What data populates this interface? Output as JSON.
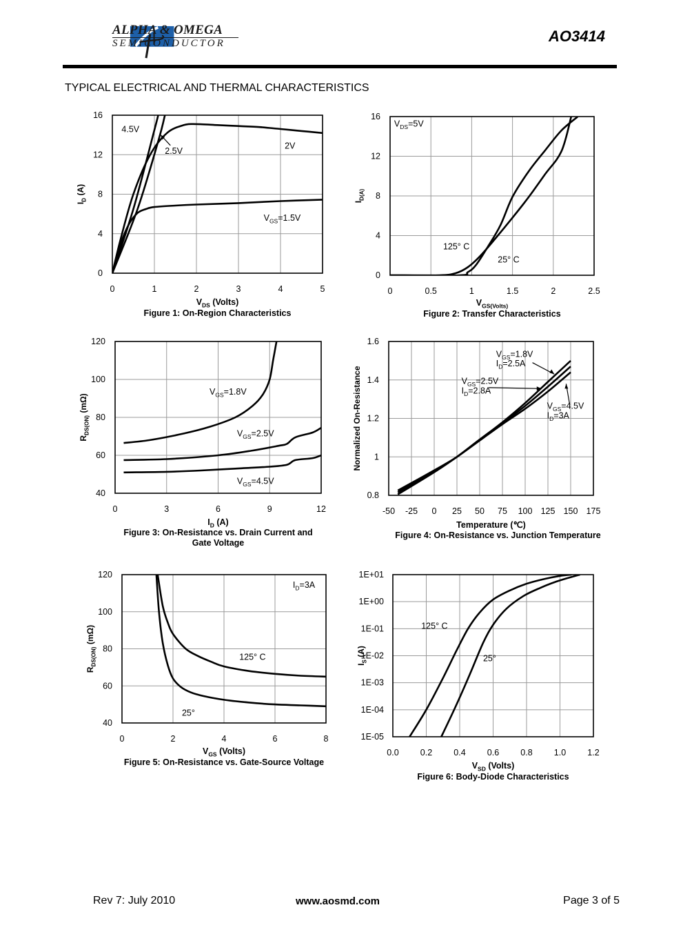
{
  "header": {
    "company_name": "ALPHA & OMEGA",
    "company_sub": "SEMICONDUCTOR",
    "part_number": "AO3414"
  },
  "section_title": "TYPICAL ELECTRICAL AND THERMAL CHARACTERISTICS",
  "footer": {
    "revision": "Rev 7: July 2010",
    "website": "www.aosmd.com",
    "page": "Page 3 of 5"
  },
  "colors": {
    "curve": "#000000",
    "grid": "#9a9a9a",
    "logo_blue": "#1d5fa8"
  },
  "chart_data": [
    {
      "type": "line",
      "caption": "Figure 1: On-Region Characteristics",
      "xlabel": "V_DS (Volts)",
      "ylabel": "I_D (A)",
      "xlim": [
        0,
        5
      ],
      "ylim": [
        0,
        16
      ],
      "xticks": [
        0,
        1,
        2,
        3,
        4,
        5
      ],
      "yticks": [
        0,
        4,
        8,
        12,
        16
      ],
      "grid": true,
      "annotations": [
        {
          "text": "4.5V",
          "x": 0.22,
          "y": 14.3
        },
        {
          "text": "2.5V",
          "x": 1.25,
          "y": 12.1,
          "arrow_to": [
            1.15,
            14.0
          ]
        },
        {
          "text": "2V",
          "x": 4.1,
          "y": 12.6
        },
        {
          "text": "V_GS=1.5V",
          "x": 3.6,
          "y": 5.3
        }
      ],
      "series": [
        {
          "x": [
            0,
            0.5,
            1.0,
            1.09
          ],
          "y": [
            0,
            6.5,
            14.5,
            16
          ]
        },
        {
          "x": [
            0,
            0.6,
            1.1,
            1.25
          ],
          "y": [
            0,
            6.5,
            13.5,
            16
          ]
        },
        {
          "x": [
            0,
            0.2,
            0.5,
            0.9,
            1.3,
            1.7,
            2.0,
            2.5,
            3.0,
            3.5,
            4.0,
            4.5,
            5.0
          ],
          "y": [
            0,
            3.5,
            8.0,
            12.0,
            14.2,
            15.0,
            15.1,
            15.0,
            14.9,
            14.8,
            14.6,
            14.4,
            14.2
          ]
        },
        {
          "x": [
            0,
            0.2,
            0.4,
            0.6,
            0.8,
            1.0,
            1.5,
            2.0,
            3.0,
            4.0,
            5.0
          ],
          "y": [
            0,
            3.0,
            5.0,
            6.1,
            6.5,
            6.7,
            6.85,
            6.95,
            7.1,
            7.3,
            7.45
          ]
        }
      ]
    },
    {
      "type": "line",
      "caption": "Figure 2: Transfer Characteristics",
      "xlabel": "V_GS(Volts)",
      "ylabel": "I_D(A)",
      "xlim": [
        0,
        2.5
      ],
      "ylim": [
        0,
        16
      ],
      "xticks": [
        0,
        0.5,
        1,
        1.5,
        2,
        2.5
      ],
      "yticks": [
        0,
        4,
        8,
        12,
        16
      ],
      "grid": true,
      "annotations": [
        {
          "text": "V_DS=5V",
          "x": 0.05,
          "y": 15.0
        },
        {
          "text": "125° C",
          "x": 0.65,
          "y": 2.6
        },
        {
          "text": "25° C",
          "x": 1.32,
          "y": 1.3
        }
      ],
      "series": [
        {
          "name": "125° C",
          "x": [
            0,
            0.6,
            0.8,
            0.95,
            1.1,
            1.3,
            1.5,
            1.7,
            1.9,
            2.1,
            2.22
          ],
          "y": [
            0,
            0,
            0.2,
            0.8,
            1.9,
            3.8,
            5.8,
            7.9,
            10.2,
            12.5,
            16.0
          ]
        },
        {
          "name": "25° C",
          "x": [
            0,
            0.85,
            0.95,
            1.05,
            1.2,
            1.35,
            1.5,
            1.7,
            1.9,
            2.1,
            2.3
          ],
          "y": [
            0,
            0,
            0.3,
            1.0,
            2.9,
            5.0,
            7.9,
            10.5,
            12.6,
            14.6,
            16.0
          ]
        }
      ]
    },
    {
      "type": "line",
      "caption": "Figure 3: On-Resistance vs. Drain Current and Gate Voltage",
      "xlabel": "I_D (A)",
      "ylabel": "R_DS(ON) (mΩ)",
      "xlim": [
        0,
        12
      ],
      "ylim": [
        40,
        120
      ],
      "xticks": [
        0,
        3,
        6,
        9,
        12
      ],
      "yticks": [
        40,
        60,
        80,
        100,
        120
      ],
      "grid": true,
      "annotations": [
        {
          "text": "V_GS=1.8V",
          "x": 5.5,
          "y": 92
        },
        {
          "text": "V_GS=2.5V",
          "x": 7.1,
          "y": 70
        },
        {
          "text": "V_GS=4.5V",
          "x": 7.1,
          "y": 45
        }
      ],
      "series": [
        {
          "name": "V_GS=1.8V",
          "x": [
            0.5,
            2,
            4,
            5.5,
            7,
            8,
            8.6,
            9.0,
            9.2,
            9.4
          ],
          "y": [
            66.5,
            68,
            71.5,
            75,
            80,
            86,
            92,
            100,
            110,
            120
          ]
        },
        {
          "name": "V_GS=2.5V",
          "x": [
            0.5,
            3,
            6,
            8,
            9.5,
            10.0,
            10.5,
            11.5,
            12
          ],
          "y": [
            57.5,
            58,
            60,
            62.5,
            65,
            66,
            69.5,
            72,
            74.5
          ]
        },
        {
          "name": "V_GS=4.5V",
          "x": [
            0.5,
            3,
            5,
            7,
            9,
            10,
            10.5,
            11.5,
            12
          ],
          "y": [
            51,
            51.3,
            52,
            53,
            54,
            55,
            57.5,
            58.5,
            60
          ]
        }
      ]
    },
    {
      "type": "line",
      "caption": "Figure 4: On-Resistance vs. Junction Temperature",
      "xlabel": "Temperature (℃)",
      "ylabel": "Normalized On-Resistance",
      "xlim": [
        -50,
        175
      ],
      "ylim": [
        0.8,
        1.6
      ],
      "xticks": [
        -50,
        -25,
        0,
        25,
        50,
        75,
        100,
        125,
        150,
        175
      ],
      "yticks": [
        0.8,
        1,
        1.2,
        1.4,
        1.6
      ],
      "grid": true,
      "annotations": [
        {
          "text": "V_GS=1.8V",
          "x": 68,
          "y": 1.52
        },
        {
          "text": "I_D=2.5A",
          "x": 68,
          "y": 1.47
        },
        {
          "text": "V_GS=2.5V",
          "x": 30,
          "y": 1.38
        },
        {
          "text": "I_D=2.8A",
          "x": 30,
          "y": 1.33
        },
        {
          "text": "V_GS=4.5V",
          "x": 124,
          "y": 1.25
        },
        {
          "text": "I_D=3A",
          "x": 124,
          "y": 1.2
        }
      ],
      "series": [
        {
          "name": "V_GS=1.8V",
          "x": [
            -40,
            0,
            25,
            50,
            75,
            100,
            125,
            150
          ],
          "y": [
            0.805,
            0.92,
            1.0,
            1.09,
            1.18,
            1.28,
            1.39,
            1.5
          ]
        },
        {
          "name": "V_GS=2.5V",
          "x": [
            -40,
            0,
            25,
            50,
            75,
            100,
            125,
            150
          ],
          "y": [
            0.815,
            0.925,
            1.0,
            1.09,
            1.175,
            1.265,
            1.365,
            1.47
          ]
        },
        {
          "name": "V_GS=4.5V",
          "x": [
            -40,
            0,
            25,
            50,
            75,
            100,
            125,
            150
          ],
          "y": [
            0.825,
            0.93,
            1.0,
            1.085,
            1.17,
            1.25,
            1.34,
            1.44
          ]
        }
      ]
    },
    {
      "type": "line",
      "caption": "Figure 5: On-Resistance vs. Gate-Source Voltage",
      "xlabel": "V_GS (Volts)",
      "ylabel": "R_DS(ON) (mΩ)",
      "xlim": [
        0,
        8
      ],
      "ylim": [
        40,
        120
      ],
      "xticks": [
        0,
        2,
        4,
        6,
        8
      ],
      "yticks": [
        40,
        60,
        80,
        100,
        120
      ],
      "grid": true,
      "annotations": [
        {
          "text": "I_D=3A",
          "x": 6.7,
          "y": 113
        },
        {
          "text": "125° C",
          "x": 4.6,
          "y": 74
        },
        {
          "text": "25°",
          "x": 2.35,
          "y": 44
        }
      ],
      "series": [
        {
          "name": "125° C",
          "x": [
            1.4,
            1.6,
            1.8,
            2.0,
            2.5,
            3.0,
            3.5,
            4.0,
            5.0,
            6.0,
            7.0,
            8.0
          ],
          "y": [
            120,
            103,
            94,
            88,
            80,
            76,
            73,
            70.5,
            68,
            66.5,
            65.5,
            65
          ]
        },
        {
          "name": "25°",
          "x": [
            1.35,
            1.45,
            1.6,
            1.8,
            2.0,
            2.3,
            2.7,
            3.2,
            4.0,
            5.0,
            6.0,
            7.0,
            8.0
          ],
          "y": [
            120,
            100,
            83,
            71,
            64,
            59.5,
            56.5,
            54.5,
            52.5,
            51,
            50,
            49.5,
            49
          ]
        }
      ]
    },
    {
      "type": "line",
      "caption": "Figure 6: Body-Diode Characteristics",
      "xlabel": "V_SD (Volts)",
      "ylabel": "I_S (A)",
      "xlim": [
        0,
        1.2
      ],
      "ylim": [
        1e-05,
        10
      ],
      "yscale": "log",
      "xticks": [
        "0.0",
        "0.2",
        "0.4",
        "0.6",
        "0.8",
        "1.0",
        "1.2"
      ],
      "yticks": [
        "1E-05",
        "1E-04",
        "1E-03",
        "1E-02",
        "1E-01",
        "1E+00",
        "1E+01"
      ],
      "grid": true,
      "annotations": [
        {
          "text": "125° C",
          "x": 0.17,
          "y": 0.1
        },
        {
          "text": "25°",
          "x": 0.54,
          "y": 0.0063
        }
      ],
      "series": [
        {
          "name": "125° C",
          "x": [
            0.1,
            0.2,
            0.3,
            0.38,
            0.45,
            0.52,
            0.6,
            0.7,
            0.8,
            0.9,
            1.0,
            1.07
          ],
          "y": [
            1e-05,
            0.0001,
            0.0015,
            0.015,
            0.1,
            0.4,
            1.2,
            2.6,
            4.6,
            6.8,
            9.0,
            10
          ]
        },
        {
          "name": "25°",
          "x": [
            0.29,
            0.38,
            0.46,
            0.54,
            0.6,
            0.68,
            0.78,
            0.88,
            0.98,
            1.08,
            1.12
          ],
          "y": [
            1e-05,
            0.00015,
            0.002,
            0.03,
            0.14,
            0.55,
            1.6,
            3.2,
            5.6,
            8.6,
            10
          ]
        }
      ]
    }
  ]
}
